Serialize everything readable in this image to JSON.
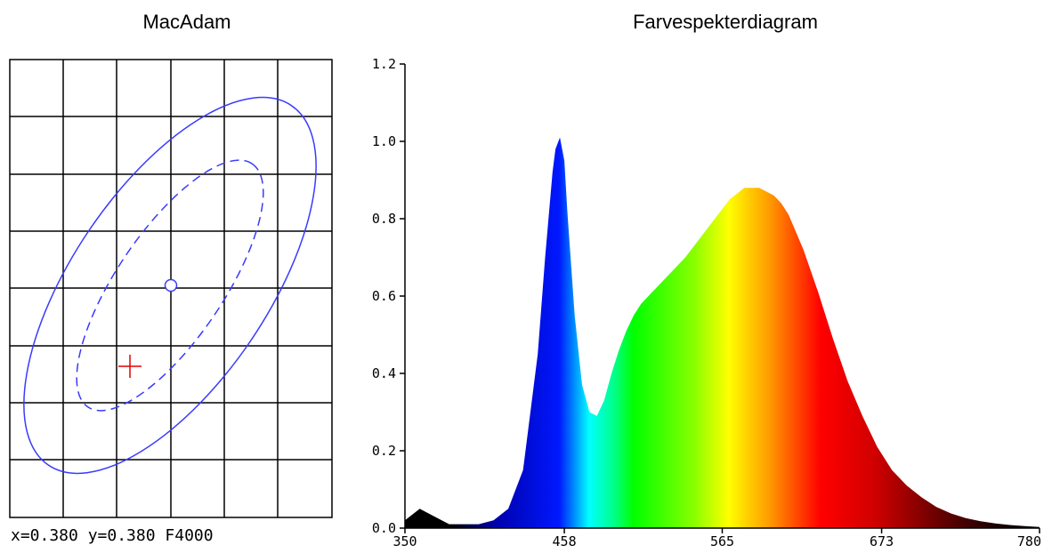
{
  "macadam": {
    "title": "MacAdam",
    "readout": {
      "x_label": "x=0.380",
      "y_label": "y=0.380",
      "source": "F4000"
    },
    "colors": {
      "grid": "#000000",
      "ellipse": "#3a3aff",
      "marker": "#e00000"
    }
  },
  "chart_data": {
    "type": "area",
    "title": "Farvespekterdiagram",
    "xlabel": "",
    "ylabel": "",
    "xlim": [
      350,
      780
    ],
    "ylim": [
      0,
      1.2
    ],
    "x_ticks": [
      "350",
      "458",
      "565",
      "673",
      "780"
    ],
    "y_ticks": [
      "0.0",
      "0.2",
      "0.4",
      "0.6",
      "0.8",
      "1.0",
      "1.2"
    ],
    "grid": false,
    "fill": "wavelength-colored spectrum",
    "x": [
      350,
      360,
      370,
      380,
      390,
      400,
      410,
      420,
      430,
      440,
      445,
      450,
      452,
      455,
      458,
      460,
      465,
      470,
      475,
      480,
      485,
      490,
      495,
      500,
      505,
      510,
      515,
      520,
      530,
      540,
      550,
      560,
      570,
      580,
      590,
      600,
      605,
      610,
      620,
      630,
      640,
      650,
      660,
      670,
      680,
      690,
      700,
      710,
      720,
      730,
      740,
      750,
      760,
      770,
      780
    ],
    "y": [
      0.02,
      0.05,
      0.03,
      0.01,
      0.01,
      0.01,
      0.02,
      0.05,
      0.15,
      0.45,
      0.7,
      0.92,
      0.98,
      1.01,
      0.95,
      0.82,
      0.55,
      0.37,
      0.3,
      0.29,
      0.33,
      0.4,
      0.46,
      0.51,
      0.55,
      0.58,
      0.6,
      0.62,
      0.66,
      0.7,
      0.75,
      0.8,
      0.85,
      0.88,
      0.88,
      0.86,
      0.84,
      0.81,
      0.72,
      0.61,
      0.49,
      0.38,
      0.29,
      0.21,
      0.15,
      0.11,
      0.08,
      0.055,
      0.038,
      0.026,
      0.018,
      0.012,
      0.008,
      0.005,
      0.003
    ]
  }
}
